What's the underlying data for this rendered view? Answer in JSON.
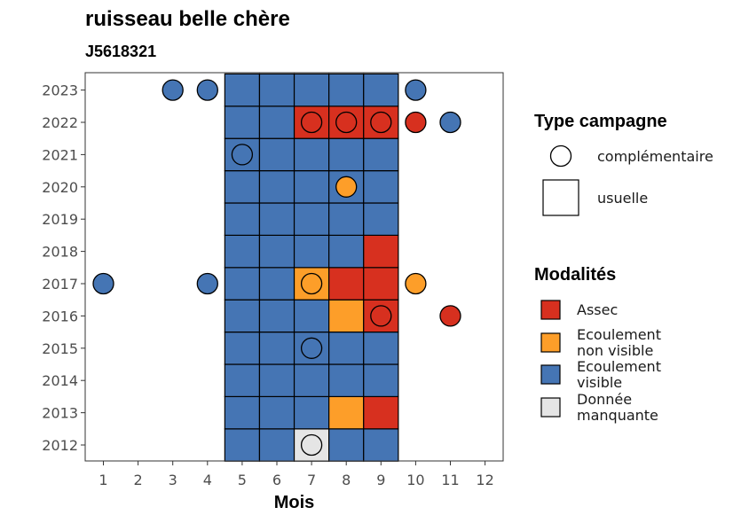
{
  "chart_data": {
    "type": "heatmap",
    "title": "ruisseau belle chère",
    "subtitle": "J5618321",
    "xlabel": "Mois",
    "ylabel": "",
    "x_ticks": [
      "1",
      "2",
      "3",
      "4",
      "5",
      "6",
      "7",
      "8",
      "9",
      "10",
      "11",
      "12"
    ],
    "y_ticks": [
      "2012",
      "2013",
      "2014",
      "2015",
      "2016",
      "2017",
      "2018",
      "2019",
      "2020",
      "2021",
      "2022",
      "2023"
    ],
    "grid": false,
    "legend_position": "right",
    "colors": {
      "Assec": "#d7301f",
      "Ecoulement non visible": "#fd9e29",
      "Ecoulement visible": "#4575b4",
      "Donnée manquante": "#e5e5e5"
    },
    "legends": {
      "type": {
        "title": "Type campagne",
        "items": [
          {
            "key": "complementaire",
            "label": "complémentaire"
          },
          {
            "key": "usuelle",
            "label": "usuelle"
          }
        ]
      },
      "modalites": {
        "title": "Modalités",
        "items": [
          {
            "key": "A",
            "lines": [
              "Assec"
            ]
          },
          {
            "key": "N",
            "lines": [
              "Ecoulement",
              "non visible"
            ]
          },
          {
            "key": "V",
            "lines": [
              "Ecoulement",
              "visible"
            ]
          },
          {
            "key": "M",
            "lines": [
              "Donnée",
              "manquante"
            ]
          }
        ]
      }
    },
    "modalite_codes": {
      "A": "Assec",
      "N": "Ecoulement non visible",
      "V": "Ecoulement visible",
      "M": "Donnée manquante"
    },
    "usuelle_months": [
      5,
      6,
      7,
      8,
      9
    ],
    "usuelle": {
      "2023": [
        "V",
        "V",
        "V",
        "V",
        "V"
      ],
      "2022": [
        "V",
        "V",
        "A",
        "A",
        "A"
      ],
      "2021": [
        "V",
        "V",
        "V",
        "V",
        "V"
      ],
      "2020": [
        "V",
        "V",
        "V",
        "V",
        "V"
      ],
      "2019": [
        "V",
        "V",
        "V",
        "V",
        "V"
      ],
      "2018": [
        "V",
        "V",
        "V",
        "V",
        "A"
      ],
      "2017": [
        "V",
        "V",
        "N",
        "A",
        "A"
      ],
      "2016": [
        "V",
        "V",
        "V",
        "N",
        "A"
      ],
      "2015": [
        "V",
        "V",
        "V",
        "V",
        "V"
      ],
      "2014": [
        "V",
        "V",
        "V",
        "V",
        "V"
      ],
      "2013": [
        "V",
        "V",
        "V",
        "N",
        "A"
      ],
      "2012": [
        "V",
        "V",
        "M",
        "V",
        "V"
      ]
    },
    "complementaire": [
      {
        "year": 2023,
        "month": 3,
        "mod": "V"
      },
      {
        "year": 2023,
        "month": 4,
        "mod": "V"
      },
      {
        "year": 2023,
        "month": 10,
        "mod": "V"
      },
      {
        "year": 2022,
        "month": 7,
        "mod": "A"
      },
      {
        "year": 2022,
        "month": 8,
        "mod": "A"
      },
      {
        "year": 2022,
        "month": 9,
        "mod": "A"
      },
      {
        "year": 2022,
        "month": 10,
        "mod": "A"
      },
      {
        "year": 2022,
        "month": 11,
        "mod": "V"
      },
      {
        "year": 2021,
        "month": 5,
        "mod": "V"
      },
      {
        "year": 2020,
        "month": 8,
        "mod": "N"
      },
      {
        "year": 2017,
        "month": 1,
        "mod": "V"
      },
      {
        "year": 2017,
        "month": 4,
        "mod": "V"
      },
      {
        "year": 2017,
        "month": 7,
        "mod": "N"
      },
      {
        "year": 2017,
        "month": 10,
        "mod": "N"
      },
      {
        "year": 2016,
        "month": 9,
        "mod": "A"
      },
      {
        "year": 2016,
        "month": 11,
        "mod": "A"
      },
      {
        "year": 2015,
        "month": 7,
        "mod": "V"
      },
      {
        "year": 2012,
        "month": 7,
        "mod": "M"
      }
    ]
  }
}
